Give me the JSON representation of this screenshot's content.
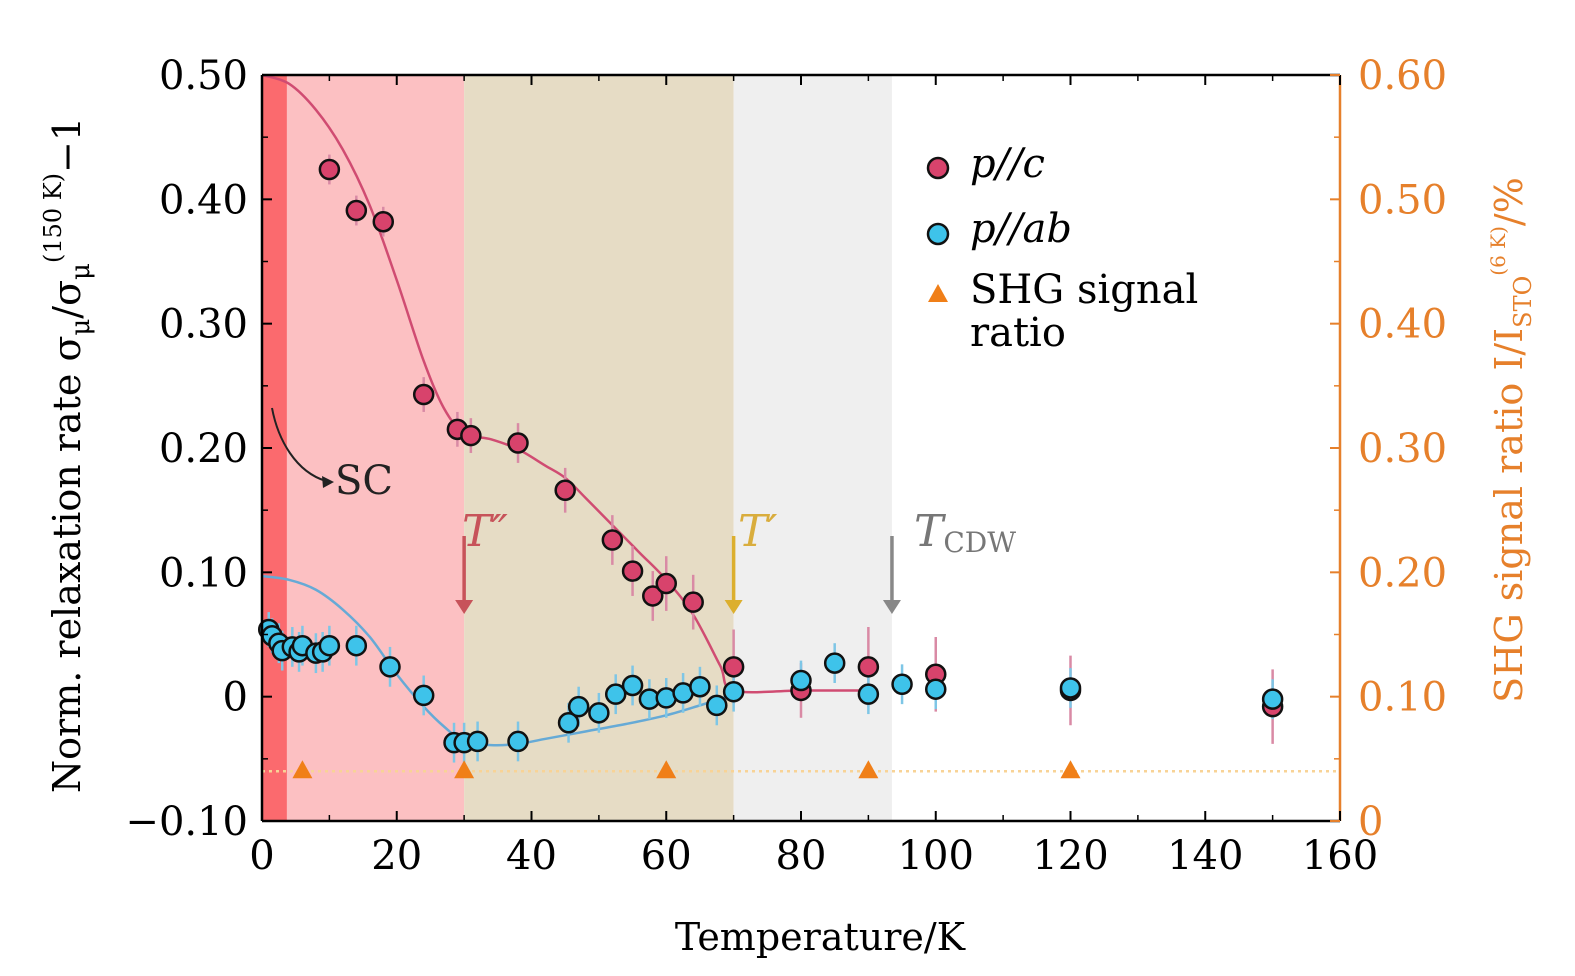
{
  "chart_data": {
    "type": "scatter",
    "xlabel": "Temperature/K",
    "ylabel": "Norm. relaxation rate σμ/σμ(150 K)−1",
    "ylabel_parts": {
      "pre": "Norm. relaxation rate σ",
      "sub1": "μ",
      "mid": "/σ",
      "sub2": "μ",
      "sup2": "(150 K)",
      "post": "−1"
    },
    "y2label": "SHG signal ratio I/ISTO(6 K)/%",
    "y2label_parts": {
      "pre": "SHG signal ratio I/I",
      "sub": "STO",
      "sup": "(6 K)",
      "post": "/%"
    },
    "xlim": [
      0,
      160
    ],
    "ylim": [
      -0.1,
      0.5
    ],
    "y2lim": [
      0,
      0.6
    ],
    "x_ticks": [
      "0",
      "20",
      "40",
      "60",
      "80",
      "100",
      "120",
      "140",
      "160"
    ],
    "x_tick_values": [
      0,
      20,
      40,
      60,
      80,
      100,
      120,
      140,
      160
    ],
    "y_ticks": [
      "−0.10",
      "0",
      "0.10",
      "0.20",
      "0.30",
      "0.40",
      "0.50"
    ],
    "y_tick_values": [
      -0.1,
      0,
      0.1,
      0.2,
      0.3,
      0.4,
      0.5
    ],
    "y2_ticks": [
      "0",
      "0.10",
      "0.20",
      "0.30",
      "0.40",
      "0.50",
      "0.60"
    ],
    "y2_tick_values": [
      0,
      0.1,
      0.2,
      0.3,
      0.4,
      0.5,
      0.6
    ],
    "regions": [
      {
        "x0": 0,
        "x1": 3.7,
        "color": "#fb6a6e"
      },
      {
        "x0": 3.7,
        "x1": 30,
        "color": "#fcc0c2"
      },
      {
        "x0": 30,
        "x1": 70,
        "color": "#e6dcc5"
      },
      {
        "x0": 70,
        "x1": 93.5,
        "color": "#efefef"
      }
    ],
    "series": [
      {
        "name": "p//c",
        "color": "#d8436c",
        "points": [
          [
            10,
            0.424,
            0.012
          ],
          [
            14,
            0.391,
            0.012
          ],
          [
            18,
            0.382,
            0.012
          ],
          [
            24,
            0.243,
            0.014
          ],
          [
            29,
            0.215,
            0.014
          ],
          [
            31,
            0.21,
            0.014
          ],
          [
            38,
            0.204,
            0.016
          ],
          [
            45,
            0.166,
            0.018
          ],
          [
            52,
            0.126,
            0.02
          ],
          [
            55,
            0.101,
            0.02
          ],
          [
            58,
            0.081,
            0.02
          ],
          [
            60,
            0.091,
            0.022
          ],
          [
            64,
            0.076,
            0.022
          ],
          [
            70,
            0.024,
            0.03
          ],
          [
            80,
            0.005,
            0.022
          ],
          [
            90,
            0.024,
            0.032
          ],
          [
            100,
            0.018,
            0.03
          ],
          [
            120,
            0.005,
            0.028
          ],
          [
            150,
            -0.008,
            0.03
          ]
        ]
      },
      {
        "name": "p//ab",
        "color": "#3ec3ea",
        "points": [
          [
            1,
            0.054,
            0.014
          ],
          [
            1.5,
            0.049,
            0.014
          ],
          [
            2.5,
            0.043,
            0.016
          ],
          [
            3,
            0.037,
            0.016
          ],
          [
            4.5,
            0.04,
            0.016
          ],
          [
            5.5,
            0.036,
            0.016
          ],
          [
            6,
            0.041,
            0.016
          ],
          [
            8,
            0.035,
            0.016
          ],
          [
            9,
            0.036,
            0.016
          ],
          [
            10,
            0.041,
            0.016
          ],
          [
            14,
            0.041,
            0.016
          ],
          [
            19,
            0.024,
            0.016
          ],
          [
            24,
            0.001,
            0.016
          ],
          [
            28.5,
            -0.037,
            0.016
          ],
          [
            30,
            -0.037,
            0.016
          ],
          [
            32,
            -0.036,
            0.016
          ],
          [
            38,
            -0.036,
            0.016
          ],
          [
            45.5,
            -0.021,
            0.016
          ],
          [
            47,
            -0.008,
            0.016
          ],
          [
            50,
            -0.013,
            0.016
          ],
          [
            52.5,
            0.002,
            0.016
          ],
          [
            55,
            0.009,
            0.016
          ],
          [
            57.5,
            -0.002,
            0.016
          ],
          [
            60,
            -0.001,
            0.016
          ],
          [
            62.5,
            0.003,
            0.016
          ],
          [
            65,
            0.008,
            0.016
          ],
          [
            67.5,
            -0.007,
            0.016
          ],
          [
            70,
            0.004,
            0.016
          ],
          [
            80,
            0.013,
            0.016
          ],
          [
            85,
            0.027,
            0.016
          ],
          [
            90,
            0.002,
            0.016
          ],
          [
            95,
            0.01,
            0.016
          ],
          [
            100,
            0.006,
            0.016
          ],
          [
            120,
            0.007,
            0.016
          ],
          [
            150,
            -0.002,
            0.016
          ]
        ]
      }
    ],
    "fit_curves": [
      {
        "series": "p//c",
        "color": "#d04c72",
        "points": [
          [
            0,
            0.5
          ],
          [
            4,
            0.493
          ],
          [
            8,
            0.472
          ],
          [
            12,
            0.44
          ],
          [
            16,
            0.395
          ],
          [
            20,
            0.335
          ],
          [
            24,
            0.27
          ],
          [
            27,
            0.232
          ],
          [
            30,
            0.212
          ],
          [
            34,
            0.207
          ],
          [
            38,
            0.199
          ],
          [
            42,
            0.186
          ],
          [
            45,
            0.176
          ],
          [
            48,
            0.16
          ],
          [
            52,
            0.138
          ],
          [
            56,
            0.116
          ],
          [
            60,
            0.094
          ],
          [
            64,
            0.066
          ],
          [
            68,
            0.025
          ],
          [
            70,
            0.005
          ],
          [
            80,
            0.005
          ],
          [
            90,
            0.005
          ]
        ]
      },
      {
        "series": "p//ab",
        "color": "#66aad6",
        "points": [
          [
            0,
            0.097
          ],
          [
            4,
            0.094
          ],
          [
            8,
            0.086
          ],
          [
            12,
            0.07
          ],
          [
            16,
            0.048
          ],
          [
            20,
            0.018
          ],
          [
            24,
            -0.008
          ],
          [
            27,
            -0.024
          ],
          [
            30,
            -0.036
          ],
          [
            34,
            -0.039
          ],
          [
            38,
            -0.038
          ],
          [
            42,
            -0.034
          ],
          [
            48,
            -0.028
          ],
          [
            54,
            -0.022
          ],
          [
            60,
            -0.015
          ],
          [
            65,
            -0.007
          ],
          [
            69,
            0.0
          ],
          [
            71,
            0.004
          ]
        ]
      }
    ],
    "shg": {
      "name": "SHG signal ratio",
      "color": "#f07f18",
      "points": [
        [
          6,
          0.04
        ],
        [
          30,
          0.04
        ],
        [
          60,
          0.04
        ],
        [
          90,
          0.04
        ],
        [
          120,
          0.04
        ]
      ],
      "dotted_line_y2": 0.04,
      "dotted_line_color": "#f8d396"
    },
    "legend": {
      "position": "upper-right",
      "entries": [
        {
          "label": "p//c",
          "marker": "circle",
          "color": "#d8436c"
        },
        {
          "label": "p//ab",
          "marker": "circle",
          "color": "#3ec3ea"
        },
        {
          "label_lines": [
            "SHG signal",
            "ratio"
          ],
          "marker": "triangle",
          "color": "#f07f18"
        }
      ]
    },
    "annotations": [
      {
        "text": "SC",
        "color": "#222222"
      },
      {
        "text_main": "T",
        "text_post": "″",
        "x": 30,
        "color": "#c7535a",
        "arrow_color": "#c7535a"
      },
      {
        "text_main": "T",
        "text_post": "′",
        "x": 70,
        "color": "#d9ad3d",
        "arrow_color": "#dcaf2e"
      },
      {
        "text_main": "T",
        "text_sub": "CDW",
        "x": 93.5,
        "color": "#777777",
        "arrow_color": "#888888"
      }
    ],
    "colors": {
      "axis": "#000000",
      "right_axis": "#e6802b"
    }
  }
}
